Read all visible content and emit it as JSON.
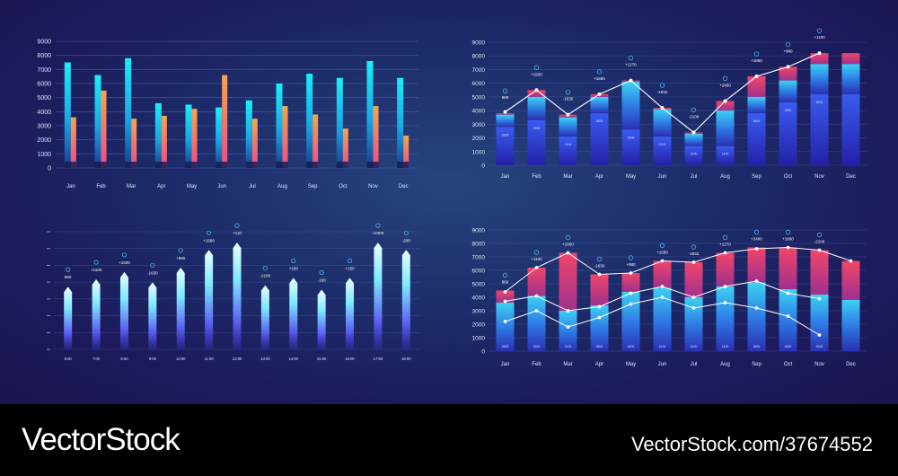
{
  "footer": {
    "brand": "VectorStock",
    "image_id": "VectorStock.com/37674552"
  },
  "colors": {
    "cyan": "#19e6f0",
    "blue": "#3450e8",
    "orange": "#f59a4a",
    "pink": "#f0508a",
    "red": "#f04a6a",
    "line": "#ffffff",
    "grid": "#4a5ca8",
    "label": "#dfe6ff",
    "marker": "#49b8e6"
  },
  "chart_data": [
    {
      "type": "bar",
      "categories": [
        "Jan",
        "Feb",
        "Mar",
        "Apr",
        "May",
        "Jun",
        "Jul",
        "Aug",
        "Sep",
        "Oct",
        "Nov",
        "Dec"
      ],
      "yticks": [
        "0",
        "1000",
        "2000",
        "3000",
        "4000",
        "5000",
        "6000",
        "7000",
        "8000",
        "9000"
      ],
      "ylim": [
        0,
        9000
      ],
      "grid": true,
      "series": [
        {
          "values": [
            7500,
            6600,
            7800,
            4600,
            4500,
            4300,
            4800,
            6000,
            6700,
            6400,
            7600,
            6400
          ]
        },
        {
          "values": [
            3600,
            5500,
            3500,
            3700,
            4200,
            6600,
            3500,
            4400,
            3800,
            2800,
            4400,
            2300
          ]
        }
      ]
    },
    {
      "type": "bar",
      "categories": [
        "Jan",
        "Feb",
        "Mar",
        "Apr",
        "May",
        "Jun",
        "Jul",
        "Aug",
        "Sep",
        "Oct",
        "Nov",
        "Dec"
      ],
      "yticks": [
        "0",
        "1000",
        "2000",
        "3000",
        "4000",
        "5000",
        "6000",
        "7000",
        "8000",
        "9000"
      ],
      "ylim": [
        0,
        9000
      ],
      "grid": true,
      "totals": [
        3800,
        5500,
        3700,
        5200,
        6200,
        4200,
        2400,
        4700,
        6500,
        7200,
        8200,
        8200
      ],
      "inner": [
        2800,
        3300,
        2100,
        3800,
        2600,
        2100,
        1400,
        1400,
        3800,
        4600,
        5200,
        5200
      ],
      "mid": [
        3700,
        5000,
        3500,
        5000,
        6100,
        4100,
        2300,
        4000,
        5000,
        6200,
        7400,
        7400
      ],
      "line": [
        3900,
        5500,
        3700,
        5200,
        6200,
        4200,
        2400,
        4700,
        6500,
        7200,
        8200,
        null
      ],
      "annotations": [
        "860",
        "+1500",
        "-1630",
        "+1590",
        "+1270",
        "-1932",
        "-2100",
        "+2400",
        "+1860",
        "+980",
        "+1100",
        ""
      ],
      "bar_labels": [
        "2800",
        "3300",
        "2100",
        "3800",
        "2600",
        "2100",
        "1400",
        "1400",
        "3800",
        "4600",
        "5200",
        ""
      ]
    },
    {
      "type": "bar",
      "categories": [
        "8:00",
        "7:00",
        "6:00",
        "9:00",
        "10:00",
        "11:00",
        "12:00",
        "13:00",
        "14:00",
        "15:00",
        "16:00",
        "17:00",
        "18:00"
      ],
      "yticks": [
        "",
        "",
        "",
        "",
        "",
        "",
        "",
        ""
      ],
      "ylim": [
        0,
        8000
      ],
      "grid": true,
      "values": [
        4200,
        4700,
        5200,
        4500,
        5500,
        6700,
        7200,
        4300,
        4800,
        4000,
        4800,
        7200,
        6700
      ],
      "annotations": [
        "860",
        "+1100",
        "+1500",
        "-1630",
        "+980",
        "+1580",
        "+110",
        "-2100",
        "+150",
        "-160",
        "+150",
        "+2400",
        "-200"
      ]
    },
    {
      "type": "bar",
      "categories": [
        "Jan",
        "Feb",
        "Mar",
        "Apr",
        "May",
        "Jun",
        "Jul",
        "Aug",
        "Sep",
        "Oct",
        "Nov",
        "Dec"
      ],
      "yticks": [
        "0",
        "1000",
        "2000",
        "3000",
        "4000",
        "5000",
        "6000",
        "7000",
        "8000",
        "9000"
      ],
      "ylim": [
        0,
        9000
      ],
      "grid": true,
      "totals": [
        4500,
        6200,
        7300,
        5700,
        5800,
        6700,
        6600,
        7300,
        7700,
        7700,
        7500,
        6700
      ],
      "blue": [
        3600,
        4100,
        3000,
        3400,
        4400,
        4700,
        4000,
        4800,
        5100,
        4600,
        4200,
        3800
      ],
      "line_top": [
        4400,
        6200,
        7300,
        5700,
        5800,
        6700,
        6600,
        7300,
        7600,
        7700,
        7500,
        6700
      ],
      "line_mid": [
        3700,
        4100,
        3000,
        3300,
        4300,
        4800,
        4000,
        4800,
        5200,
        4300,
        3900,
        null
      ],
      "line_low": [
        2200,
        3000,
        1800,
        2500,
        3500,
        4000,
        3200,
        3600,
        3200,
        2600,
        1200,
        null
      ],
      "annotations": [
        "860",
        "+1100",
        "+1000",
        "-1630",
        "+980",
        "+1580",
        "-1932",
        "+1270",
        "+2400",
        "+1860",
        "-2100",
        ""
      ],
      "bar_labels": [
        "2800",
        "3300",
        "2100",
        "3800",
        "2600",
        "2100",
        "1400",
        "1400",
        "3800",
        "4600",
        "5200",
        ""
      ]
    }
  ]
}
